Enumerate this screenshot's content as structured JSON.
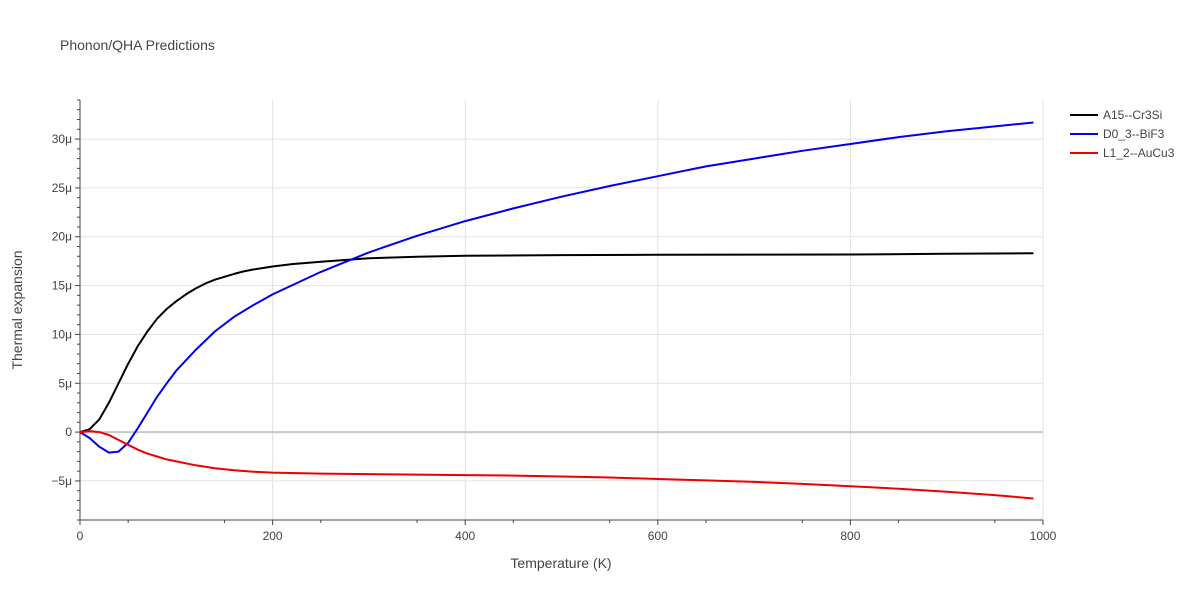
{
  "chart_data": {
    "type": "line",
    "title": "Phonon/QHA Predictions",
    "xlabel": "Temperature (K)",
    "ylabel": "Thermal expansion",
    "xlim": [
      0,
      1000
    ],
    "ylim": [
      -9,
      34
    ],
    "y_unit_suffix": "μ",
    "x_ticks": [
      0,
      200,
      400,
      600,
      800,
      1000
    ],
    "y_ticks": [
      -5,
      0,
      5,
      10,
      15,
      20,
      25,
      30
    ],
    "x_tick_labels": [
      "0",
      "200",
      "400",
      "600",
      "800",
      "1000"
    ],
    "y_tick_labels": [
      "−5μ",
      "0",
      "5μ",
      "10μ",
      "15μ",
      "20μ",
      "25μ",
      "30μ"
    ],
    "grid": true,
    "legend_position": "top-right",
    "series": [
      {
        "name": "A15--Cr3Si",
        "color": "#000000",
        "x": [
          0,
          10,
          20,
          30,
          40,
          50,
          60,
          70,
          80,
          90,
          100,
          110,
          120,
          130,
          140,
          150,
          160,
          170,
          180,
          190,
          200,
          220,
          250,
          300,
          350,
          400,
          500,
          600,
          700,
          800,
          900,
          990
        ],
        "y": [
          0,
          0.3,
          1.3,
          3.0,
          5.0,
          7.0,
          8.8,
          10.3,
          11.6,
          12.6,
          13.4,
          14.1,
          14.7,
          15.2,
          15.6,
          15.9,
          16.2,
          16.45,
          16.65,
          16.8,
          16.95,
          17.2,
          17.45,
          17.8,
          17.95,
          18.05,
          18.12,
          18.15,
          18.17,
          18.18,
          18.25,
          18.3
        ]
      },
      {
        "name": "D0_3--BiF3",
        "color": "#0000ee",
        "x": [
          0,
          10,
          20,
          30,
          40,
          50,
          60,
          70,
          80,
          90,
          100,
          120,
          140,
          160,
          180,
          200,
          250,
          300,
          350,
          400,
          450,
          500,
          550,
          600,
          650,
          700,
          750,
          800,
          850,
          900,
          950,
          990
        ],
        "y": [
          0,
          -0.6,
          -1.5,
          -2.1,
          -2.0,
          -1.1,
          0.4,
          2.0,
          3.6,
          5.0,
          6.3,
          8.4,
          10.3,
          11.8,
          13.0,
          14.1,
          16.4,
          18.4,
          20.1,
          21.6,
          22.9,
          24.1,
          25.2,
          26.2,
          27.2,
          28.0,
          28.8,
          29.5,
          30.2,
          30.8,
          31.3,
          31.7
        ]
      },
      {
        "name": "L1_2--AuCu3",
        "color": "#ee0000",
        "x": [
          0,
          10,
          20,
          30,
          40,
          50,
          60,
          70,
          80,
          90,
          100,
          120,
          140,
          160,
          180,
          200,
          250,
          300,
          350,
          400,
          450,
          500,
          550,
          600,
          650,
          700,
          750,
          800,
          850,
          900,
          950,
          990
        ],
        "y": [
          0,
          0.1,
          0.0,
          -0.3,
          -0.8,
          -1.3,
          -1.8,
          -2.2,
          -2.5,
          -2.8,
          -3.0,
          -3.4,
          -3.7,
          -3.9,
          -4.05,
          -4.15,
          -4.25,
          -4.3,
          -4.35,
          -4.4,
          -4.45,
          -4.55,
          -4.65,
          -4.8,
          -4.95,
          -5.1,
          -5.3,
          -5.55,
          -5.8,
          -6.1,
          -6.45,
          -6.8
        ]
      }
    ]
  }
}
